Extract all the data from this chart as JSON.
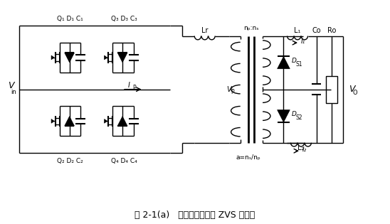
{
  "bg": "#ffffff",
  "lc": "#000000",
  "figsize": [
    5.48,
    3.15
  ],
  "dpi": 100,
  "title": "图 2-1(a)   改进型移相全桥 ZVS 主电路",
  "Q1D1C1": "Q₁ D₁ C₁",
  "Q3D3C3": "Q₃ D₃ C₃",
  "Q2D2C2": "Q₂ D₂ C₂",
  "Q4D4C4": "Q₄ D₄ C₄",
  "Vin": "V",
  "Vin_sub": "in",
  "Lr": "Lr",
  "Vp": "V",
  "Vp_sub": "P",
  "npns": "nₚ:nₛ",
  "L1": "L₁",
  "L2": "L₂",
  "Co": "Co",
  "Ro": "Ro",
  "Vo": "V",
  "Vo_sub": "O",
  "DS1": "D",
  "DS1_sub": "S1",
  "DS2": "D",
  "DS2_sub": "S2",
  "I1": "I₁",
  "I2": "I₂",
  "Ip": "I",
  "Ip_sub": "P",
  "a": "a=nₛ/nₚ"
}
